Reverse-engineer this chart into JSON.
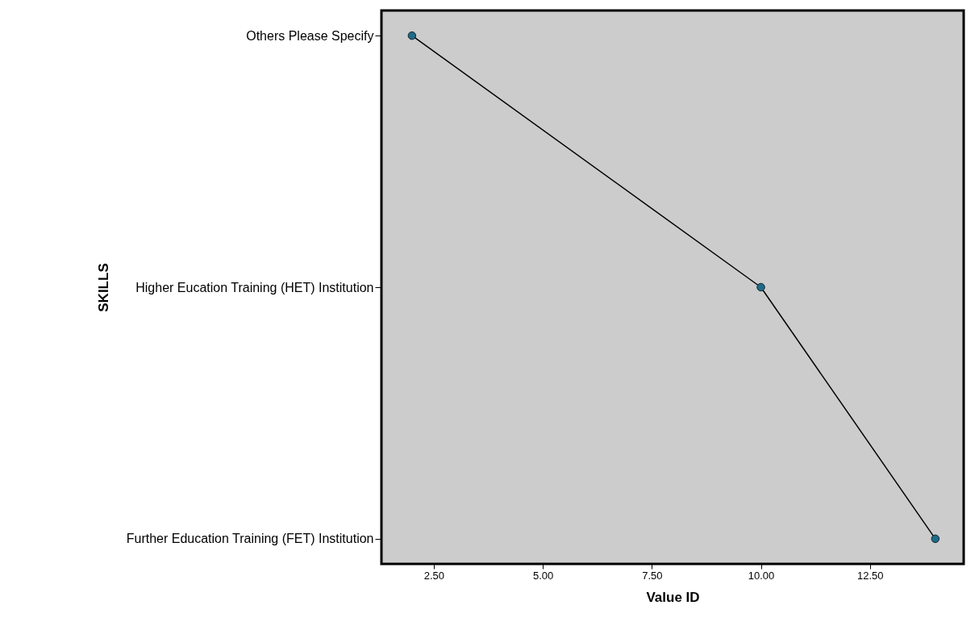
{
  "chart_data": {
    "type": "line",
    "orientation": "horizontal",
    "categories": [
      "Others Please Specify",
      "Higher Eucation Training (HET) Institution",
      "Further Education Training (FET) Institution"
    ],
    "values": [
      2,
      10,
      14
    ],
    "color": "#1f6b85",
    "marker": "circle",
    "xlabel": "Value ID",
    "ylabel": "SKILLS",
    "xlim": [
      1.3,
      14.65
    ],
    "xticks": [
      {
        "value": 2.5,
        "label": "2.50"
      },
      {
        "value": 5,
        "label": "5.00"
      },
      {
        "value": 7.5,
        "label": "7.50"
      },
      {
        "value": 10,
        "label": "10.00"
      },
      {
        "value": 12.5,
        "label": "12.50"
      }
    ]
  }
}
